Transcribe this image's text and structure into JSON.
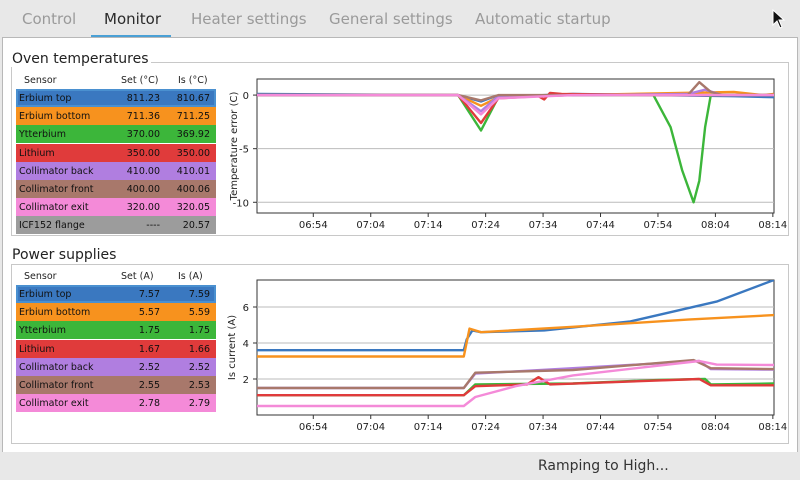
{
  "tabs": [
    {
      "label": "Control"
    },
    {
      "label": "Monitor"
    },
    {
      "label": "Heater settings"
    },
    {
      "label": "General settings"
    },
    {
      "label": "Automatic startup"
    }
  ],
  "active_tab": "Monitor",
  "oven": {
    "title": "Oven temperatures",
    "headers": [
      "Sensor",
      "Set (°C)",
      "Is (°C)"
    ],
    "rows": [
      {
        "sensor": "Erbium top",
        "set": "811.23",
        "is": "810.67",
        "color": "#3a78c0"
      },
      {
        "sensor": "Erbium bottom",
        "set": "711.36",
        "is": "711.25",
        "color": "#f7921e"
      },
      {
        "sensor": "Ytterbium",
        "set": "370.00",
        "is": "369.92",
        "color": "#3cb63a"
      },
      {
        "sensor": "Lithium",
        "set": "350.00",
        "is": "350.00",
        "color": "#e03b3b"
      },
      {
        "sensor": "Collimator back",
        "set": "410.00",
        "is": "410.01",
        "color": "#b07ee0"
      },
      {
        "sensor": "Collimator front",
        "set": "400.00",
        "is": "400.06",
        "color": "#a8786b"
      },
      {
        "sensor": "Collimator exit",
        "set": "320.00",
        "is": "320.05",
        "color": "#f48ad8"
      },
      {
        "sensor": "ICF152 flange",
        "set": "----",
        "is": "20.57",
        "color": "#9c9c9c"
      }
    ]
  },
  "power": {
    "title": "Power supplies",
    "headers": [
      "Sensor",
      "Set (A)",
      "Is (A)"
    ],
    "rows": [
      {
        "sensor": "Erbium top",
        "set": "7.57",
        "is": "7.59",
        "color": "#3a78c0"
      },
      {
        "sensor": "Erbium bottom",
        "set": "5.57",
        "is": "5.59",
        "color": "#f7921e"
      },
      {
        "sensor": "Ytterbium",
        "set": "1.75",
        "is": "1.75",
        "color": "#3cb63a"
      },
      {
        "sensor": "Lithium",
        "set": "1.67",
        "is": "1.66",
        "color": "#e03b3b"
      },
      {
        "sensor": "Collimator back",
        "set": "2.52",
        "is": "2.52",
        "color": "#b07ee0"
      },
      {
        "sensor": "Collimator front",
        "set": "2.55",
        "is": "2.53",
        "color": "#a8786b"
      },
      {
        "sensor": "Collimator exit",
        "set": "2.78",
        "is": "2.79",
        "color": "#f48ad8"
      }
    ]
  },
  "chart_data": [
    {
      "type": "line",
      "title": "",
      "xlabel": "",
      "ylabel": "Temperature error (C)",
      "x_ticks": [
        "06:54",
        "07:04",
        "07:14",
        "07:24",
        "07:34",
        "07:44",
        "07:54",
        "08:04",
        "08:14"
      ],
      "x_range_min": [
        45,
        135
      ],
      "ylim": [
        -11,
        1.5
      ],
      "y_ticks": [
        0,
        -5,
        -10
      ],
      "grid": true,
      "series": [
        {
          "color": "#3a78c0",
          "points": [
            [
              45,
              0.1
            ],
            [
              80,
              0
            ],
            [
              84,
              -0.6
            ],
            [
              86,
              -0.2
            ],
            [
              100,
              0.1
            ],
            [
              128,
              -0.1
            ],
            [
              135,
              -0.2
            ]
          ]
        },
        {
          "color": "#f7921e",
          "points": [
            [
              45,
              0
            ],
            [
              80,
              0
            ],
            [
              84,
              -1.0
            ],
            [
              87,
              -0.2
            ],
            [
              100,
              0
            ],
            [
              128,
              0.3
            ],
            [
              133,
              0
            ],
            [
              135,
              0.1
            ]
          ]
        },
        {
          "color": "#3cb63a",
          "points": [
            [
              45,
              0
            ],
            [
              80,
              0
            ],
            [
              84,
              -3.3
            ],
            [
              87,
              -0.2
            ],
            [
              100,
              0
            ],
            [
              114,
              0
            ],
            [
              117,
              -3
            ],
            [
              119,
              -7
            ],
            [
              121,
              -10
            ],
            [
              122,
              -8
            ],
            [
              123,
              -3
            ],
            [
              124,
              0
            ],
            [
              135,
              0
            ]
          ]
        },
        {
          "color": "#e03b3b",
          "points": [
            [
              45,
              0
            ],
            [
              80,
              0
            ],
            [
              84,
              -2.6
            ],
            [
              87,
              -0.3
            ],
            [
              94,
              -0.1
            ],
            [
              95,
              -0.4
            ],
            [
              96,
              0.2
            ],
            [
              98,
              0.1
            ],
            [
              115,
              0
            ],
            [
              135,
              0
            ]
          ]
        },
        {
          "color": "#b07ee0",
          "points": [
            [
              45,
              0
            ],
            [
              80,
              0
            ],
            [
              84,
              -1.5
            ],
            [
              87,
              -0.1
            ],
            [
              120,
              0.1
            ],
            [
              123,
              0.5
            ],
            [
              126,
              0
            ],
            [
              135,
              0
            ]
          ]
        },
        {
          "color": "#a8786b",
          "points": [
            [
              45,
              0
            ],
            [
              80,
              0
            ],
            [
              84,
              -0.5
            ],
            [
              87,
              0
            ],
            [
              120,
              0
            ],
            [
              122,
              1.2
            ],
            [
              124,
              0.3
            ],
            [
              126,
              0
            ],
            [
              135,
              0
            ]
          ]
        },
        {
          "color": "#f48ad8",
          "points": [
            [
              45,
              0
            ],
            [
              80,
              0
            ],
            [
              84,
              -1.8
            ],
            [
              87,
              -0.3
            ],
            [
              100,
              0
            ],
            [
              135,
              0
            ]
          ]
        }
      ]
    },
    {
      "type": "line",
      "title": "",
      "xlabel": "",
      "ylabel": "Is current (A)",
      "x_ticks": [
        "06:54",
        "07:04",
        "07:14",
        "07:24",
        "07:34",
        "07:44",
        "07:54",
        "08:04",
        "08:14"
      ],
      "x_range_min": [
        45,
        135
      ],
      "ylim": [
        0,
        7.5
      ],
      "y_ticks": [
        2,
        4,
        6
      ],
      "grid": true,
      "series": [
        {
          "color": "#3a78c0",
          "points": [
            [
              45,
              3.6
            ],
            [
              81,
              3.6
            ],
            [
              81.5,
              4.2
            ],
            [
              82.5,
              4.7
            ],
            [
              84,
              4.6
            ],
            [
              95,
              4.7
            ],
            [
              110,
              5.2
            ],
            [
              125,
              6.3
            ],
            [
              135,
              7.5
            ]
          ]
        },
        {
          "color": "#f7921e",
          "points": [
            [
              45,
              3.25
            ],
            [
              81,
              3.25
            ],
            [
              82,
              4.8
            ],
            [
              84,
              4.6
            ],
            [
              100,
              4.9
            ],
            [
              120,
              5.3
            ],
            [
              135,
              5.55
            ]
          ]
        },
        {
          "color": "#3cb63a",
          "points": [
            [
              45,
              1.1
            ],
            [
              81,
              1.1
            ],
            [
              83,
              1.7
            ],
            [
              100,
              1.75
            ],
            [
              115,
              1.95
            ],
            [
              123,
              2.0
            ],
            [
              124,
              1.7
            ],
            [
              135,
              1.75
            ]
          ]
        },
        {
          "color": "#e03b3b",
          "points": [
            [
              45,
              1.1
            ],
            [
              81,
              1.1
            ],
            [
              83,
              1.6
            ],
            [
              92,
              1.7
            ],
            [
              94,
              2.1
            ],
            [
              96,
              1.7
            ],
            [
              122,
              2.0
            ],
            [
              124,
              1.65
            ],
            [
              135,
              1.65
            ]
          ]
        },
        {
          "color": "#b07ee0",
          "points": [
            [
              45,
              1.5
            ],
            [
              81,
              1.5
            ],
            [
              83,
              2.3
            ],
            [
              100,
              2.6
            ],
            [
              122,
              3.0
            ],
            [
              124,
              2.55
            ],
            [
              135,
              2.52
            ]
          ]
        },
        {
          "color": "#a8786b",
          "points": [
            [
              45,
              1.5
            ],
            [
              81,
              1.5
            ],
            [
              83,
              2.35
            ],
            [
              100,
              2.5
            ],
            [
              121,
              3.05
            ],
            [
              124,
              2.6
            ],
            [
              135,
              2.55
            ]
          ]
        },
        {
          "color": "#f48ad8",
          "points": [
            [
              45,
              0.5
            ],
            [
              81,
              0.5
            ],
            [
              83,
              1.0
            ],
            [
              90,
              1.6
            ],
            [
              100,
              2.2
            ],
            [
              122,
              3.0
            ],
            [
              125,
              2.8
            ],
            [
              135,
              2.78
            ]
          ]
        }
      ]
    }
  ],
  "status": {
    "text": "Ramping to High..."
  }
}
